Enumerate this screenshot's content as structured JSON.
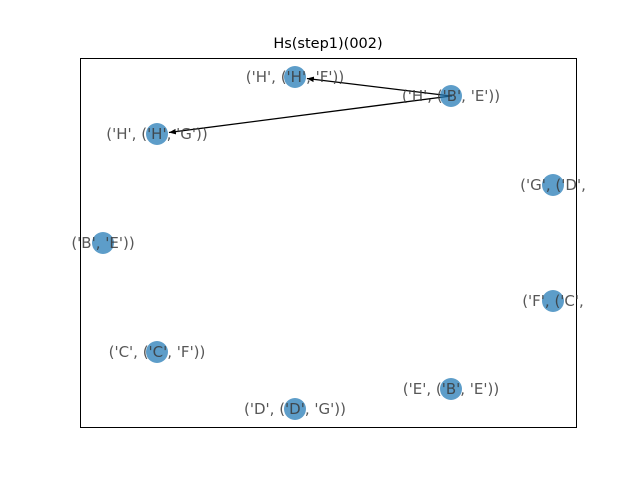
{
  "title": "Hs(step1)(002)",
  "colors": {
    "node_fill": "#1f77b4",
    "edge": "#000000",
    "frame": "#000000",
    "label": "#000000"
  },
  "graph": {
    "nodes": [
      {
        "id": "n_H_HF",
        "label": "('H', ('H', 'F'))"
      },
      {
        "id": "n_H_BE",
        "label": "('H', ('B', 'E'))"
      },
      {
        "id": "n_H_HG",
        "label": "('H', ('H', 'G'))"
      },
      {
        "id": "n_G_D",
        "label": "('G', ('D',"
      },
      {
        "id": "n_BE",
        "label": "('B', 'E'))"
      },
      {
        "id": "n_F_C",
        "label": "('F', ('C',"
      },
      {
        "id": "n_C_CF",
        "label": "('C', ('C', 'F'))"
      },
      {
        "id": "n_E_BE",
        "label": "('E', ('B', 'E'))"
      },
      {
        "id": "n_D_DG",
        "label": "('D', ('D', 'G'))"
      }
    ],
    "edges": [
      {
        "source": "n_H_BE",
        "target": "n_H_HF",
        "directed": true
      },
      {
        "source": "n_H_BE",
        "target": "n_H_HG",
        "directed": true
      }
    ]
  }
}
